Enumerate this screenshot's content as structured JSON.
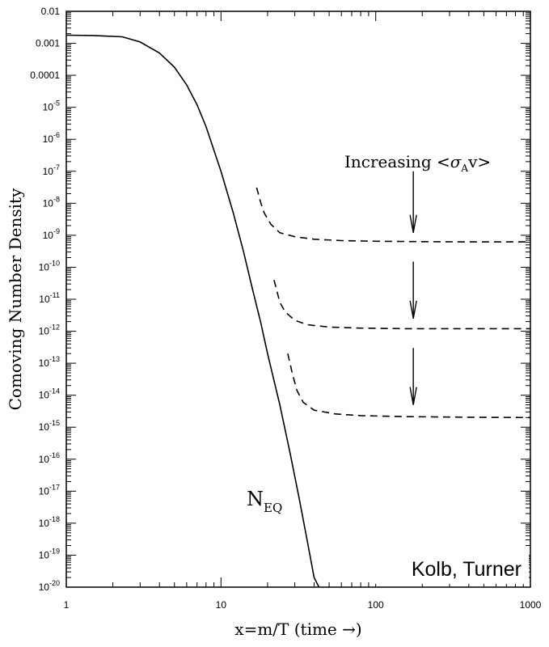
{
  "chart_data": {
    "type": "line",
    "xlabel": "x=m/T (time →)",
    "ylabel": "Comoving Number Density",
    "x_scale": "log",
    "y_scale": "log",
    "xlim": [
      1,
      1000
    ],
    "ylim": [
      1e-20,
      0.01
    ],
    "x_ticks": [
      {
        "value": 1,
        "label": "1"
      },
      {
        "value": 10,
        "label": "10"
      },
      {
        "value": 100,
        "label": "100"
      },
      {
        "value": 1000,
        "label": "1000"
      }
    ],
    "y_ticks": [
      {
        "value": 0.01,
        "base": "0.01",
        "exp": ""
      },
      {
        "value": 0.001,
        "base": "0.001",
        "exp": ""
      },
      {
        "value": 0.0001,
        "base": "0.0001",
        "exp": ""
      },
      {
        "value": 1e-05,
        "base": "10",
        "exp": "-5"
      },
      {
        "value": 1e-06,
        "base": "10",
        "exp": "-6"
      },
      {
        "value": 1e-07,
        "base": "10",
        "exp": "-7"
      },
      {
        "value": 1e-08,
        "base": "10",
        "exp": "-8"
      },
      {
        "value": 1e-09,
        "base": "10",
        "exp": "-9"
      },
      {
        "value": 1e-10,
        "base": "10",
        "exp": "-10"
      },
      {
        "value": 1e-11,
        "base": "10",
        "exp": "-11"
      },
      {
        "value": 1e-12,
        "base": "10",
        "exp": "-12"
      },
      {
        "value": 1e-13,
        "base": "10",
        "exp": "-13"
      },
      {
        "value": 1e-14,
        "base": "10",
        "exp": "-14"
      },
      {
        "value": 1e-15,
        "base": "10",
        "exp": "-15"
      },
      {
        "value": 1e-16,
        "base": "10",
        "exp": "-16"
      },
      {
        "value": 1e-17,
        "base": "10",
        "exp": "-17"
      },
      {
        "value": 1e-18,
        "base": "10",
        "exp": "-18"
      },
      {
        "value": 1e-19,
        "base": "10",
        "exp": "-19"
      },
      {
        "value": 1e-20,
        "base": "10",
        "exp": "-20"
      }
    ],
    "grid": false,
    "series": [
      {
        "name": "N_EQ",
        "style": "solid",
        "color": "#000000",
        "points": [
          [
            1,
            0.0018
          ],
          [
            1.5,
            0.00175
          ],
          [
            2.3,
            0.0016
          ],
          [
            3,
            0.0011
          ],
          [
            4,
            0.0005
          ],
          [
            5,
            0.00018
          ],
          [
            6,
            5e-05
          ],
          [
            7,
            1.2e-05
          ],
          [
            8,
            2.5e-06
          ],
          [
            10,
            1e-07
          ],
          [
            12,
            5e-09
          ],
          [
            14,
            3e-10
          ],
          [
            16,
            2e-11
          ],
          [
            18,
            2e-12
          ],
          [
            20,
            2e-13
          ],
          [
            24,
            5e-15
          ],
          [
            28,
            1.5e-16
          ],
          [
            32,
            6e-18
          ],
          [
            36,
            3e-19
          ],
          [
            40,
            2e-20
          ],
          [
            43,
            1e-20
          ]
        ]
      },
      {
        "style": "dashed",
        "color": "#000000",
        "points": [
          [
            17,
            3.1e-08
          ],
          [
            18,
            1.1e-08
          ],
          [
            19,
            5e-09
          ],
          [
            21,
            2.2e-09
          ],
          [
            24,
            1.2e-09
          ],
          [
            30,
            9e-10
          ],
          [
            40,
            7.5e-10
          ],
          [
            60,
            6.8e-10
          ],
          [
            100,
            6.5e-10
          ],
          [
            200,
            6.3e-10
          ],
          [
            400,
            6.2e-10
          ],
          [
            1000,
            6.2e-10
          ]
        ]
      },
      {
        "style": "dashed",
        "color": "#000000",
        "points": [
          [
            22,
            4e-11
          ],
          [
            24,
            8e-12
          ],
          [
            26,
            4e-12
          ],
          [
            30,
            2.2e-12
          ],
          [
            36,
            1.6e-12
          ],
          [
            50,
            1.35e-12
          ],
          [
            80,
            1.25e-12
          ],
          [
            150,
            1.2e-12
          ],
          [
            400,
            1.2e-12
          ],
          [
            1000,
            1.2e-12
          ]
        ]
      },
      {
        "style": "dashed",
        "color": "#000000",
        "points": [
          [
            27,
            2e-13
          ],
          [
            29,
            4.5e-14
          ],
          [
            31,
            1.4e-14
          ],
          [
            34,
            6e-15
          ],
          [
            40,
            3.4e-15
          ],
          [
            55,
            2.6e-15
          ],
          [
            80,
            2.3e-15
          ],
          [
            150,
            2.15e-15
          ],
          [
            400,
            2.05e-15
          ],
          [
            1000,
            2e-15
          ]
        ]
      }
    ],
    "annotations": {
      "increasing_text": "Increasing <",
      "sigma": "σ",
      "sigma_sub": "A",
      "increasing_tail": "v>",
      "neq_main": "N",
      "neq_sub": "EQ",
      "credit": "Kolb, Turner"
    },
    "arrows": [
      {
        "x": 175,
        "y_from": 1e-07,
        "y_to": 1.2e-09
      },
      {
        "x": 175,
        "y_from": 1.5e-10,
        "y_to": 2.5e-12
      },
      {
        "x": 175,
        "y_from": 3e-13,
        "y_to": 5e-15
      }
    ]
  }
}
